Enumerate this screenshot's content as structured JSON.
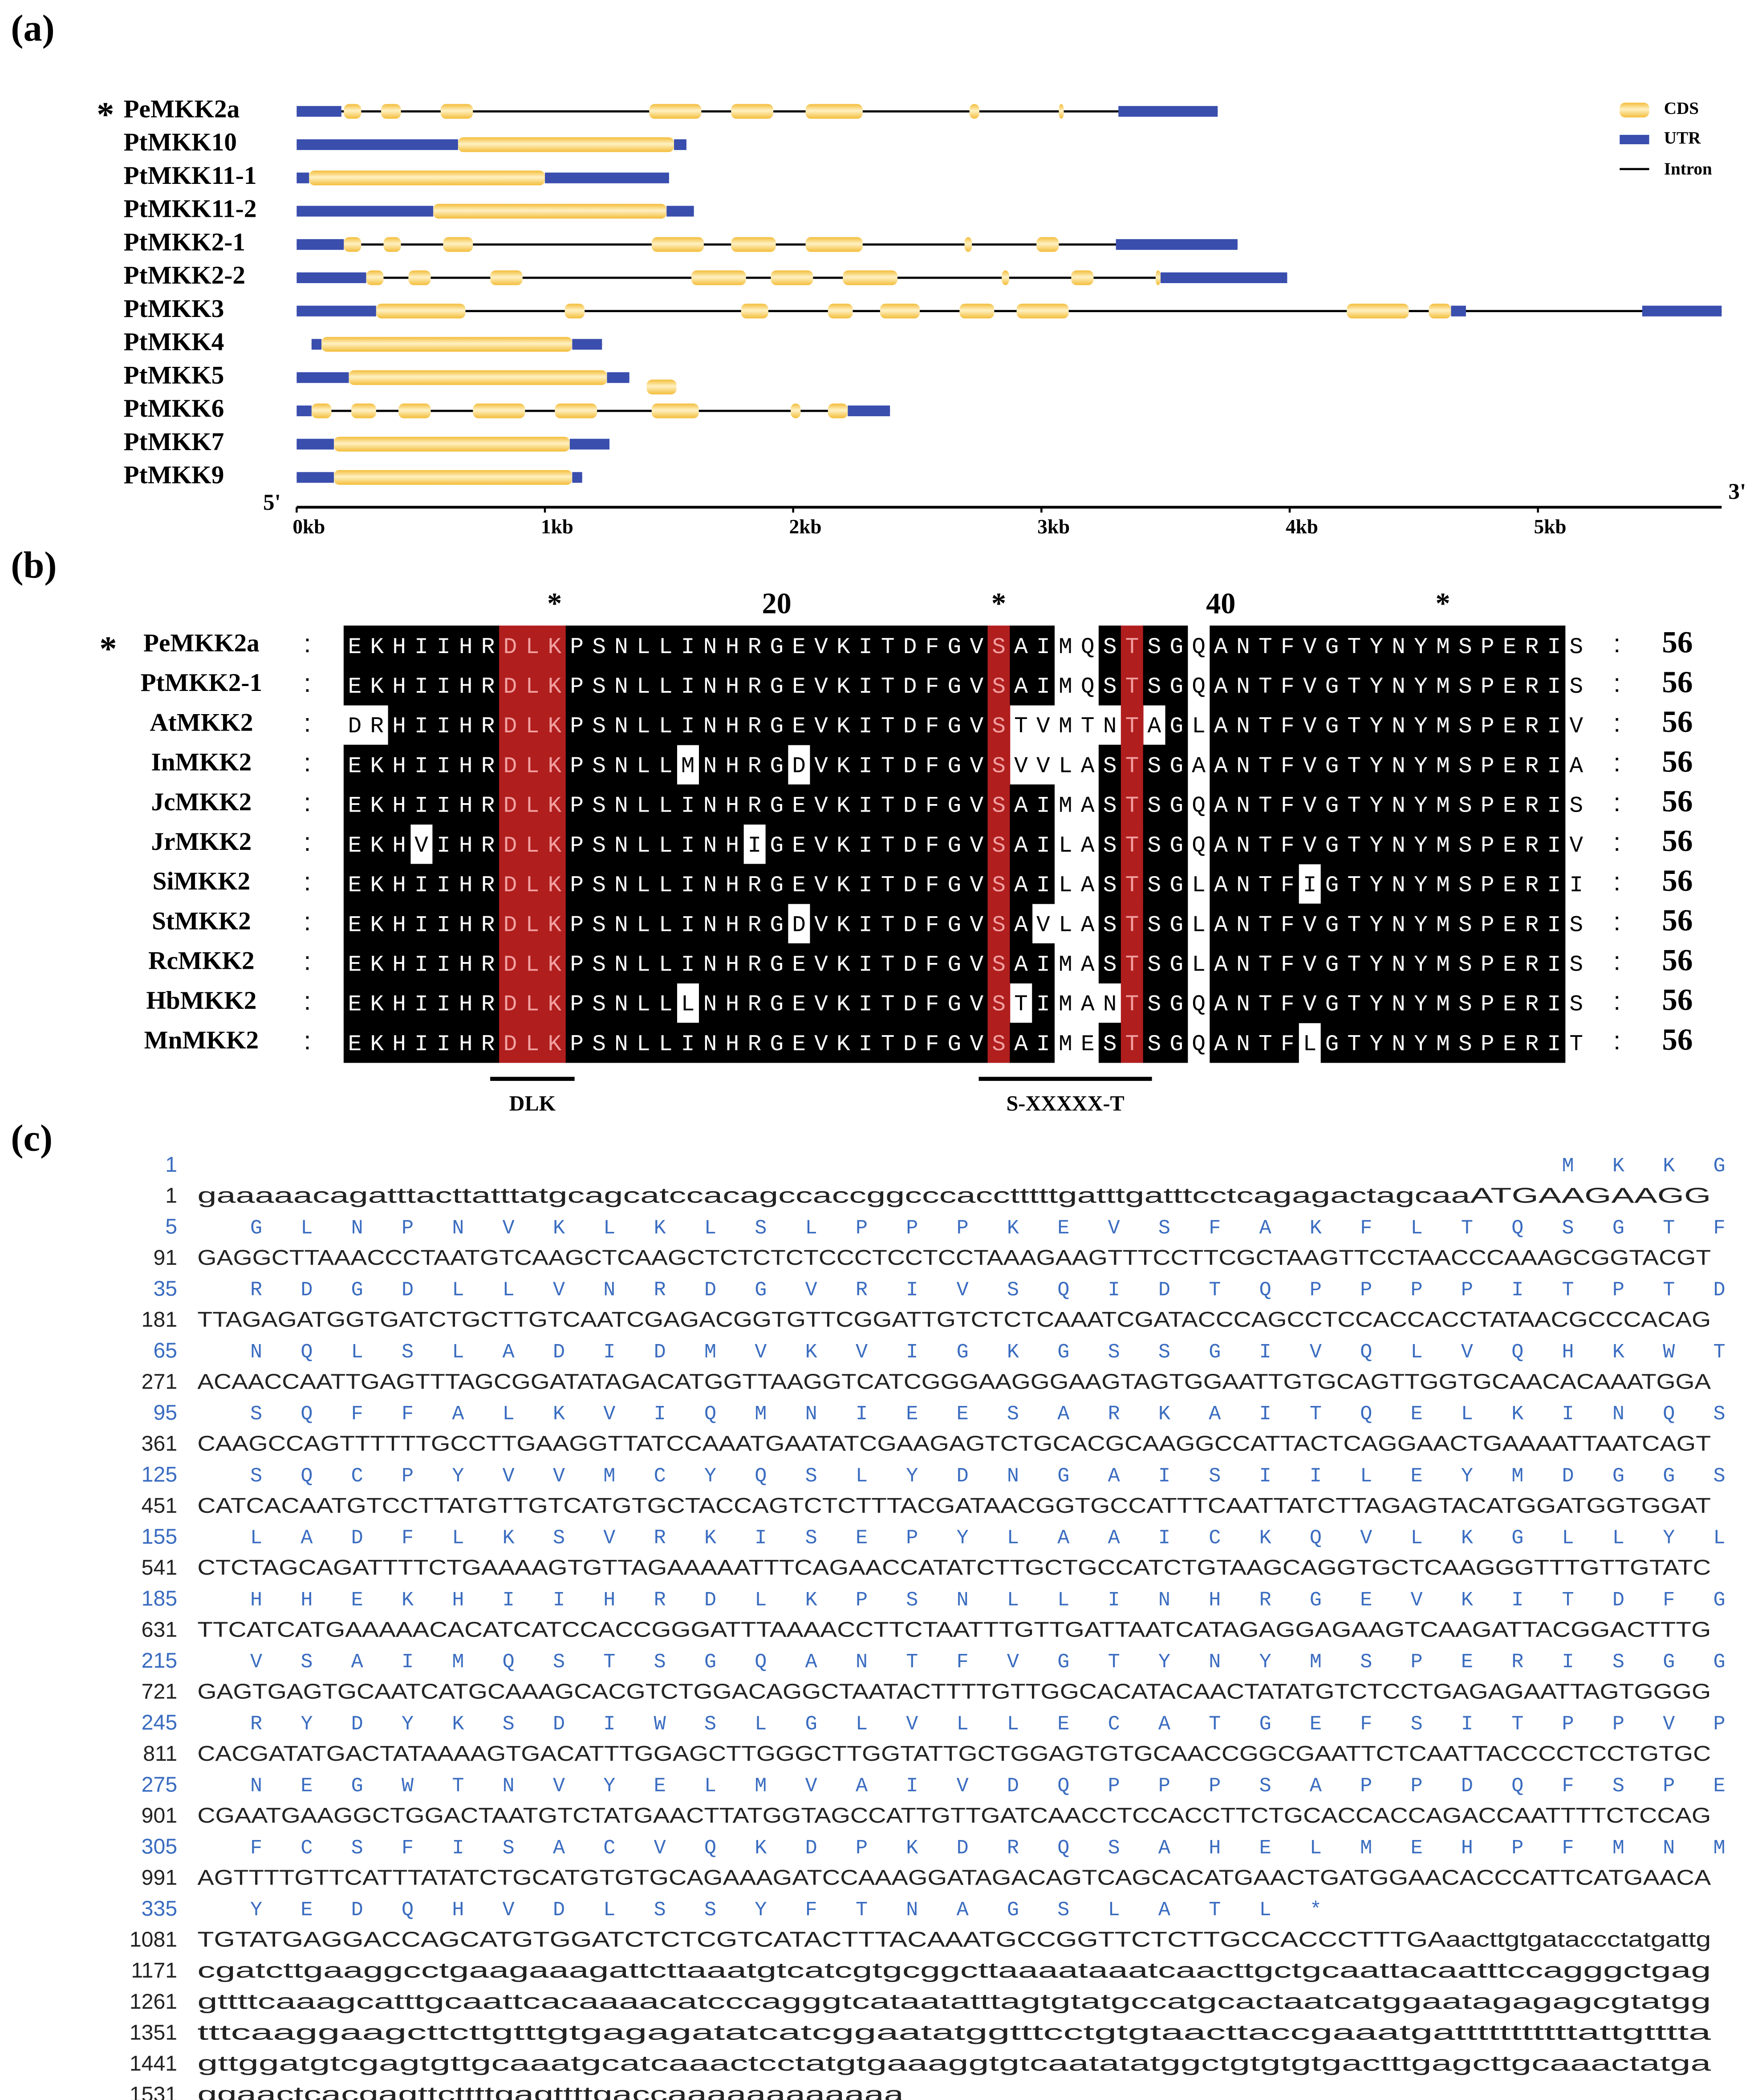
{
  "panel_a": {
    "label": "(a)",
    "colors": {
      "cds": "#f3bd3a",
      "utr": "#3a4eae",
      "intron": "#000000"
    },
    "legend": {
      "cds": "CDS",
      "utr": "UTR",
      "intron": "Intron"
    },
    "five_prime": "5'",
    "three_prime": "3'",
    "xlim": [
      0,
      5.74
    ],
    "xticks": [
      {
        "value": 0,
        "label": "0kb"
      },
      {
        "value": 1,
        "label": "1kb"
      },
      {
        "value": 2,
        "label": "2kb"
      },
      {
        "value": 3,
        "label": "3kb"
      },
      {
        "value": 4,
        "label": "4kb"
      },
      {
        "value": 5,
        "label": "5kb"
      }
    ],
    "genes": [
      {
        "name": "PeMKK2a",
        "mark": "*",
        "start": 0,
        "end": 3.71,
        "utr": [
          [
            0,
            0.18
          ],
          [
            3.31,
            3.71
          ]
        ],
        "cds": [
          [
            0.19,
            0.26
          ],
          [
            0.34,
            0.42
          ],
          [
            0.58,
            0.71
          ],
          [
            1.42,
            1.63
          ],
          [
            1.75,
            1.92
          ],
          [
            2.05,
            2.28
          ],
          [
            2.71,
            2.75
          ],
          [
            3.07,
            3.09
          ]
        ]
      },
      {
        "name": "PtMKK10",
        "start": 0,
        "end": 1.57,
        "utr": [
          [
            0,
            0.65
          ],
          [
            1.52,
            1.57
          ]
        ],
        "cds": [
          [
            0.65,
            1.52
          ]
        ]
      },
      {
        "name": "PtMKK11-1",
        "start": 0,
        "end": 1.5,
        "utr": [
          [
            0,
            0.05
          ],
          [
            1.0,
            1.5
          ]
        ],
        "cds": [
          [
            0.05,
            1.0
          ]
        ]
      },
      {
        "name": "PtMKK11-2",
        "start": 0,
        "end": 1.6,
        "utr": [
          [
            0,
            0.55
          ],
          [
            1.49,
            1.6
          ]
        ],
        "cds": [
          [
            0.55,
            1.49
          ]
        ]
      },
      {
        "name": "PtMKK2-1",
        "start": 0,
        "end": 3.79,
        "utr": [
          [
            0,
            0.19
          ],
          [
            3.3,
            3.79
          ]
        ],
        "cds": [
          [
            0.19,
            0.26
          ],
          [
            0.35,
            0.42
          ],
          [
            0.59,
            0.71
          ],
          [
            1.43,
            1.64
          ],
          [
            1.75,
            1.93
          ],
          [
            2.05,
            2.28
          ],
          [
            2.69,
            2.72
          ],
          [
            2.98,
            3.07
          ]
        ]
      },
      {
        "name": "PtMKK2-2",
        "start": 0,
        "end": 3.99,
        "utr": [
          [
            0,
            0.28
          ],
          [
            3.48,
            3.99
          ]
        ],
        "cds": [
          [
            0.28,
            0.35
          ],
          [
            0.45,
            0.54
          ],
          [
            0.78,
            0.91
          ],
          [
            1.59,
            1.81
          ],
          [
            1.91,
            2.08
          ],
          [
            2.2,
            2.42
          ],
          [
            2.84,
            2.87
          ],
          [
            3.12,
            3.21
          ],
          [
            3.46,
            3.48
          ]
        ]
      },
      {
        "name": "PtMKK3",
        "start": 0,
        "end": 5.74,
        "utr": [
          [
            0,
            0.32
          ],
          [
            4.65,
            4.71
          ],
          [
            5.42,
            5.74
          ]
        ],
        "cds": [
          [
            0.32,
            0.68
          ],
          [
            1.08,
            1.16
          ],
          [
            1.79,
            1.9
          ],
          [
            2.14,
            2.24
          ],
          [
            2.35,
            2.51
          ],
          [
            2.67,
            2.81
          ],
          [
            2.9,
            3.11
          ],
          [
            4.23,
            4.48
          ],
          [
            4.56,
            4.65
          ]
        ]
      },
      {
        "name": "PtMKK4",
        "start": 0.06,
        "end": 1.23,
        "utr": [
          [
            0.06,
            0.1
          ],
          [
            1.11,
            1.23
          ]
        ],
        "cds": [
          [
            0.1,
            1.11
          ]
        ]
      },
      {
        "name": "PtMKK5",
        "start": 0,
        "end": 1.34,
        "utr": [
          [
            0,
            0.21
          ],
          [
            1.25,
            1.34
          ]
        ],
        "cds": [
          [
            0.21,
            1.25
          ],
          [
            1.41,
            1.53
          ]
        ]
      },
      {
        "name": "PtMKK6",
        "start": 0,
        "end": 2.39,
        "utr": [
          [
            0,
            0.06
          ],
          [
            2.22,
            2.39
          ]
        ],
        "cds": [
          [
            0.06,
            0.14
          ],
          [
            0.22,
            0.32
          ],
          [
            0.41,
            0.54
          ],
          [
            0.71,
            0.92
          ],
          [
            1.04,
            1.21
          ],
          [
            1.43,
            1.62
          ],
          [
            1.99,
            2.03
          ],
          [
            2.14,
            2.22
          ]
        ]
      },
      {
        "name": "PtMKK7",
        "start": 0,
        "end": 1.26,
        "utr": [
          [
            0,
            0.15
          ],
          [
            1.1,
            1.26
          ]
        ],
        "cds": [
          [
            0.15,
            1.1
          ]
        ]
      },
      {
        "name": "PtMKK9",
        "start": 0,
        "end": 1.15,
        "utr": [
          [
            0,
            0.15
          ],
          [
            1.11,
            1.15
          ]
        ],
        "cds": [
          [
            0.15,
            1.11
          ]
        ]
      }
    ]
  },
  "panel_b": {
    "label": "(b)",
    "separator": ":",
    "colors": {
      "conserved": "#000000",
      "highlight": "#b01e1e",
      "highlight_text": "#f2a0a0"
    },
    "shading_threshold": 0.7,
    "red_columns": [
      8,
      9,
      10,
      30,
      36
    ],
    "ruler": [
      {
        "value": 10,
        "label": "*"
      },
      {
        "value": 20,
        "label": "20"
      },
      {
        "value": 30,
        "label": "*"
      },
      {
        "value": 40,
        "label": "40"
      },
      {
        "value": 50,
        "label": "*"
      }
    ],
    "motifs": [
      {
        "label": "DLK",
        "start": 8,
        "end": 10
      },
      {
        "label": "S-XXXXX-T",
        "start": 30,
        "end": 36
      }
    ],
    "sequences": [
      {
        "name": "PeMKK2a",
        "mark": "*",
        "seq": "EKHIIHRDLKPSNLLINHRGEVKITDFGVSAIMQSTSGQANTFVGTYNYMSPERIS",
        "end": 56
      },
      {
        "name": "PtMKK2-1",
        "seq": "EKHIIHRDLKPSNLLINHRGEVKITDFGVSAIMQSTSGQANTFVGTYNYMSPERIS",
        "end": 56
      },
      {
        "name": "AtMKK2",
        "seq": "DRHIIHRDLKPSNLLINHRGEVKITDFGVSTVMTNTAGLANTFVGTYNYMSPERIV",
        "end": 56
      },
      {
        "name": "InMKK2",
        "seq": "EKHIIHRDLKPSNLLMNHRGDVKITDFGVSVVLASTSGAANTFVGTYNYMSPERIA",
        "end": 56
      },
      {
        "name": "JcMKK2",
        "seq": "EKHIIHRDLKPSNLLINHRGEVKITDFGVSAIMASTSGQANTFVGTYNYMSPERIS",
        "end": 56
      },
      {
        "name": "JrMKK2",
        "seq": "EKHVIHRDLKPSNLLINHIGEVKITDFGVSAILASTSGQANTFVGTYNYMSPERIV",
        "end": 56
      },
      {
        "name": "SiMKK2",
        "seq": "EKHIIHRDLKPSNLLINHRGEVKITDFGVSAILASTSGLANTFIGTYNYMSPERII",
        "end": 56
      },
      {
        "name": "StMKK2",
        "seq": "EKHIIHRDLKPSNLLINHRGDVKITDFGVSAVLASTSGLANTFVGTYNYMSPERIS",
        "end": 56
      },
      {
        "name": "RcMKK2",
        "seq": "EKHIIHRDLKPSNLLINHRGEVKITDFGVSAIMASTSGLANTFVGTYNYMSPERIS",
        "end": 56
      },
      {
        "name": "HbMKK2",
        "seq": "EKHIIHRDLKPSNLLLNHRGEVKITDFGVSTIMANTSGQANTFVGTYNYMSPERIS",
        "end": 56
      },
      {
        "name": "MnMKK2",
        "seq": "EKHIIHRDLKPSNLLINHRGEVKITDFGVSAIMESTSGQANTFLGTYNYMSPERIT",
        "end": 56
      }
    ]
  },
  "panel_c": {
    "label": "(c)",
    "colors": {
      "protein": "#3a6cc0",
      "nucleotide": "#222222"
    },
    "protein_lines": [
      {
        "start": 1,
        "residues": "MKKG"
      },
      {
        "start": 5,
        "residues": "GLNPNVKLKLSLPPPKEVSFAKFLTQSGTF"
      },
      {
        "start": 35,
        "residues": "RDGDLLVNRDGVRIVSQIDTQPPPPITPTD"
      },
      {
        "start": 65,
        "residues": "NQLSLADIDMVKVIGKGSSGIVQLVQHKWT"
      },
      {
        "start": 95,
        "residues": "SQFFALKVIQMNIEESARKAITQELKINQS"
      },
      {
        "start": 125,
        "residues": "SQCPYVVMCYQSLYDNGAISIILEYMDGGS"
      },
      {
        "start": 155,
        "residues": "LADFLKSVRKISEPYLAAICKQVLKGLLYL"
      },
      {
        "start": 185,
        "residues": "HHEKHIIHRDLKPSNLLINHRGEVKITDFG"
      },
      {
        "start": 215,
        "residues": "VSAIMQSTSGQANTFVGTYNYMSPERISGG"
      },
      {
        "start": 245,
        "residues": "RYDYKSDIWSLGLVLLECATGEFSITPPVP"
      },
      {
        "start": 275,
        "residues": "NEGWTNVYELMVAIVDQPPPSAPPDQFSPE"
      },
      {
        "start": 305,
        "residues": "FCSFISACVQKDPKDRQSAHELMEHPFMNM"
      },
      {
        "start": 335,
        "residues": "YEDQHVDLSSYFTNAGSLATL*"
      }
    ],
    "nucleotide_lines": [
      {
        "start": 1,
        "seq": "gaaaaacagatttacttatttatgcagcatccacagccaccggcccacctttttgatttgatttcctcagagactagcaaATGAAGAAGG"
      },
      {
        "start": 91,
        "seq": "GAGGCTTAAACCCTAATGTCAAGCTCAAGCTCTCTCTCCCTCCTCCTAAAGAAGTTTCCTTCGCTAAGTTCCTAACCCAAAGCGGTACGT"
      },
      {
        "start": 181,
        "seq": "TTAGAGATGGTGATCTGCTTGTCAATCGAGACGGTGTTCGGATTGTCTCTCAAATCGATACCCAGCCTCCACCACCTATAACGCCCACAG"
      },
      {
        "start": 271,
        "seq": "ACAACCAATTGAGTTTAGCGGATATAGACATGGTTAAGGTCATCGGGAAGGGAAGTAGTGGAATTGTGCAGTTGGTGCAACACAAATGGA"
      },
      {
        "start": 361,
        "seq": "CAAGCCAGTTTTTTGCCTTGAAGGTTATCCAAATGAATATCGAAGAGTCTGCACGCAAGGCCATTACTCAGGAACTGAAAATTAATCAGT"
      },
      {
        "start": 451,
        "seq": "CATCACAATGTCCTTATGTTGTCATGTGCTACCAGTCTCTTTACGATAACGGTGCCATTTCAATTATCTTAGAGTACATGGATGGTGGAT"
      },
      {
        "start": 541,
        "seq": "CTCTAGCAGATTTTCTGAAAAGTGTTAGAAAAATTTCAGAACCATATCTTGCTGCCATCTGTAAGCAGGTGCTCAAGGGTTTGTTGTATC"
      },
      {
        "start": 631,
        "seq": "TTCATCATGAAAAACACATCATCCACCGGGATTTAAAACCTTCTAATTTGTTGATTAATCATAGAGGAGAAGTCAAGATTACGGACTTTG"
      },
      {
        "start": 721,
        "seq": "GAGTGAGTGCAATCATGCAAAGCACGTCTGGACAGGCTAATACTTTTGTTGGCACATACAACTATATGTCTCCTGAGAGAATTAGTGGGG"
      },
      {
        "start": 811,
        "seq": "CACGATATGACTATAAAAGTGACATTTGGAGCTTGGGCTTGGTATTGCTGGAGTGTGCAACCGGCGAATTCTCAATTACCCCTCCTGTGC"
      },
      {
        "start": 901,
        "seq": "CGAATGAAGGCTGGACTAATGTCTATGAACTTATGGTAGCCATTGTTGATCAACCTCCACCTTCTGCACCACCAGACCAATTTTCTCCAG"
      },
      {
        "start": 991,
        "seq": "AGTTTTGTTCATTTATATCTGCATGTGTGCAGAAAGATCCAAAGGATAGACAGTCAGCACATGAACTGATGGAACACCCATTCATGAACA"
      },
      {
        "start": 1081,
        "seq": "TGTATGAGGACCAGCATGTGGATCTCTCGTCATACTTTACAAATGCCGGTTCTCTTGCCACCCTTTGAaacttgtgataccctatgattg"
      },
      {
        "start": 1171,
        "seq": "cgatcttgaaggcctgaagaaagattcttaaatgtcatcgtgcggcttaaaataaatcaacttgctgcaattacaatttccagggctgag"
      },
      {
        "start": 1261,
        "seq": "gttttcaaagcatttgcaattcacaaaacatcccagggtcataatatttagtgtatgccatgcactaatcatggaatagagagcgtatgg"
      },
      {
        "start": 1351,
        "seq": "tttcaaggaagcttcttgtttgtgagagatatcatcggaatatggtttcctgtgtaacttaccgaaatgatttttttttttattgtttta"
      },
      {
        "start": 1441,
        "seq": "gttggatgtcgagtgttgcaaatgcatcaaactcctatgtgaaaggtgtcaatatatggctgtgtgtgactttgagcttgcaaactatga"
      },
      {
        "start": 1531,
        "seq": "ggaactcacgagttcttttgagttttgaccaaaaaaaaaaaa"
      }
    ]
  }
}
